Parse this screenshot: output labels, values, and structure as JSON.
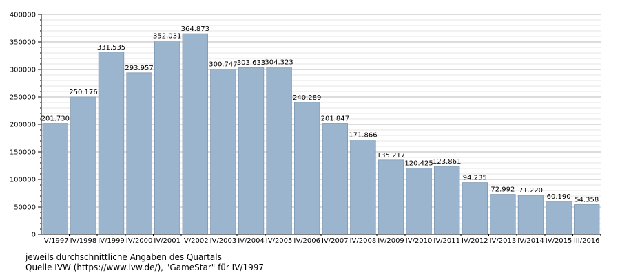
{
  "chart_data": {
    "type": "bar",
    "categories": [
      "IV/1997",
      "IV/1998",
      "IV/1999",
      "IV/2000",
      "IV/2001",
      "IV/2002",
      "IV/2003",
      "IV/2004",
      "IV/2005",
      "IV/2006",
      "IV/2007",
      "IV/2008",
      "IV/2009",
      "IV/2010",
      "IV/2011",
      "IV/2012",
      "IV/2013",
      "IV/2014",
      "IV/2015",
      "III/2016"
    ],
    "values": [
      201730,
      250176,
      331535,
      293957,
      352031,
      364873,
      300747,
      303633,
      304323,
      240289,
      201847,
      171866,
      135217,
      120425,
      123861,
      94235,
      72992,
      71220,
      60190,
      54358
    ],
    "value_labels": [
      "201.730",
      "250.176",
      "331.535",
      "293.957",
      "352.031",
      "364.873",
      "300.747",
      "303.633",
      "304.323",
      "240.289",
      "201.847",
      "171.866",
      "135.217",
      "120.425",
      "123.861",
      "94.235",
      "72.992",
      "71.220",
      "60.190",
      "54.358"
    ],
    "ylim": [
      0,
      400000
    ],
    "yticks": [
      "0",
      "50000",
      "100000",
      "150000",
      "200000",
      "250000",
      "300000",
      "350000",
      "400000"
    ],
    "grid": true,
    "bar_color": "#9bb5ce",
    "bar_edge_color": "#7f98b2"
  },
  "notes": {
    "line1": "jeweils durchschnittliche Angaben des Quartals",
    "line2": "Quelle IVW (https://www.ivw.de/), \"GameStar\" für IV/1997"
  }
}
